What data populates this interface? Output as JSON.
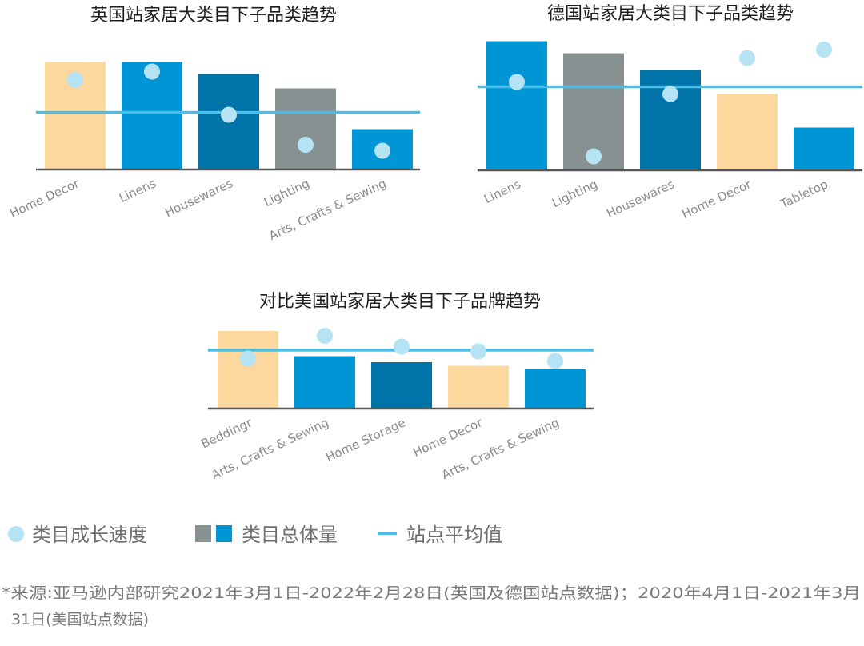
{
  "colors": {
    "peach": "#FDD89E",
    "blue": "#0096D6",
    "dark_blue": "#0073A8",
    "gray": "#879192",
    "dot": "#B6E3F4",
    "avg_line": "#4BBEE8",
    "axis": "#555555"
  },
  "chart_data": [
    {
      "type": "bar",
      "title": "英国站家居大类目下子品类趋势",
      "categories": [
        "Home Decor",
        "Linens",
        "Housewares",
        "Lighting",
        "Arts, Crafts & Sewing"
      ],
      "series": [
        {
          "name": "类目总体量",
          "values": [
            89,
            89,
            79,
            67,
            33
          ],
          "colors": [
            "peach",
            "blue",
            "dark_blue",
            "gray",
            "blue"
          ]
        },
        {
          "name": "类目成长速度",
          "type": "scatter",
          "values": [
            74,
            81,
            45,
            20,
            15
          ]
        },
        {
          "name": "站点平均值",
          "type": "hline",
          "value": 47
        }
      ],
      "ylim": [
        0,
        110
      ],
      "grid": false
    },
    {
      "type": "bar",
      "title": "德国站家居大类目下子品类趋势",
      "categories": [
        "Linens",
        "Lighting",
        "Housewares",
        "Home Decor",
        "Tabletop"
      ],
      "series": [
        {
          "name": "类目总体量",
          "values": [
            107,
            97,
            83,
            63,
            35
          ],
          "colors": [
            "blue",
            "gray",
            "dark_blue",
            "peach",
            "blue"
          ]
        },
        {
          "name": "类目成长速度",
          "type": "scatter",
          "values": [
            73,
            11,
            63,
            93,
            100
          ]
        },
        {
          "name": "站点平均值",
          "type": "hline",
          "value": 69
        }
      ],
      "ylim": [
        0,
        110
      ],
      "grid": false
    },
    {
      "type": "bar",
      "title": "对比美国站家居大类目下子品牌趋势",
      "categories": [
        "Beddingr",
        "Arts, Crafts & Sewing",
        "Home Storage",
        "Home Decor",
        "Arts, Crafts & Sewing"
      ],
      "series": [
        {
          "name": "类目总体量",
          "values": [
            64,
            43,
            38,
            35,
            32
          ],
          "colors": [
            "peach",
            "blue",
            "dark_blue",
            "peach",
            "blue"
          ]
        },
        {
          "name": "类目成长速度",
          "type": "scatter",
          "values": [
            41,
            60,
            51,
            47,
            39
          ]
        },
        {
          "name": "站点平均值",
          "type": "hline",
          "value": 48
        }
      ],
      "ylim": [
        0,
        70
      ],
      "grid": false
    }
  ],
  "legend": {
    "growth": "类目成长速度",
    "volume": "类目总体量",
    "average": "站点平均值"
  },
  "footnote": {
    "line1": "*来源:亚马逊内部研究2021年3月1日-2022年2月28日(英国及德国站点数据)；2020年4月1日-2021年3月",
    "line2": "31日(美国站点数据)"
  }
}
